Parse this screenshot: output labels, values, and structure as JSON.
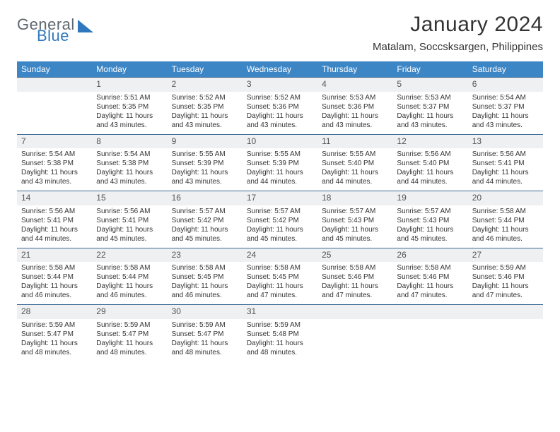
{
  "brand": {
    "part1": "General",
    "part2": "Blue"
  },
  "title": "January 2024",
  "location": "Matalam, Soccsksargen, Philippines",
  "colors": {
    "header_bg": "#3d86c6",
    "header_text": "#ffffff",
    "daynum_bg": "#eef0f1",
    "rule": "#3d6a97",
    "brand_blue": "#2f78bd",
    "brand_gray": "#5d6770"
  },
  "weekdays": [
    "Sunday",
    "Monday",
    "Tuesday",
    "Wednesday",
    "Thursday",
    "Friday",
    "Saturday"
  ],
  "weeks": [
    {
      "nums": [
        "",
        "1",
        "2",
        "3",
        "4",
        "5",
        "6"
      ],
      "cells": [
        {
          "sunrise": "",
          "sunset": "",
          "daylight": ""
        },
        {
          "sunrise": "Sunrise: 5:51 AM",
          "sunset": "Sunset: 5:35 PM",
          "daylight": "Daylight: 11 hours and 43 minutes."
        },
        {
          "sunrise": "Sunrise: 5:52 AM",
          "sunset": "Sunset: 5:35 PM",
          "daylight": "Daylight: 11 hours and 43 minutes."
        },
        {
          "sunrise": "Sunrise: 5:52 AM",
          "sunset": "Sunset: 5:36 PM",
          "daylight": "Daylight: 11 hours and 43 minutes."
        },
        {
          "sunrise": "Sunrise: 5:53 AM",
          "sunset": "Sunset: 5:36 PM",
          "daylight": "Daylight: 11 hours and 43 minutes."
        },
        {
          "sunrise": "Sunrise: 5:53 AM",
          "sunset": "Sunset: 5:37 PM",
          "daylight": "Daylight: 11 hours and 43 minutes."
        },
        {
          "sunrise": "Sunrise: 5:54 AM",
          "sunset": "Sunset: 5:37 PM",
          "daylight": "Daylight: 11 hours and 43 minutes."
        }
      ]
    },
    {
      "nums": [
        "7",
        "8",
        "9",
        "10",
        "11",
        "12",
        "13"
      ],
      "cells": [
        {
          "sunrise": "Sunrise: 5:54 AM",
          "sunset": "Sunset: 5:38 PM",
          "daylight": "Daylight: 11 hours and 43 minutes."
        },
        {
          "sunrise": "Sunrise: 5:54 AM",
          "sunset": "Sunset: 5:38 PM",
          "daylight": "Daylight: 11 hours and 43 minutes."
        },
        {
          "sunrise": "Sunrise: 5:55 AM",
          "sunset": "Sunset: 5:39 PM",
          "daylight": "Daylight: 11 hours and 43 minutes."
        },
        {
          "sunrise": "Sunrise: 5:55 AM",
          "sunset": "Sunset: 5:39 PM",
          "daylight": "Daylight: 11 hours and 44 minutes."
        },
        {
          "sunrise": "Sunrise: 5:55 AM",
          "sunset": "Sunset: 5:40 PM",
          "daylight": "Daylight: 11 hours and 44 minutes."
        },
        {
          "sunrise": "Sunrise: 5:56 AM",
          "sunset": "Sunset: 5:40 PM",
          "daylight": "Daylight: 11 hours and 44 minutes."
        },
        {
          "sunrise": "Sunrise: 5:56 AM",
          "sunset": "Sunset: 5:41 PM",
          "daylight": "Daylight: 11 hours and 44 minutes."
        }
      ]
    },
    {
      "nums": [
        "14",
        "15",
        "16",
        "17",
        "18",
        "19",
        "20"
      ],
      "cells": [
        {
          "sunrise": "Sunrise: 5:56 AM",
          "sunset": "Sunset: 5:41 PM",
          "daylight": "Daylight: 11 hours and 44 minutes."
        },
        {
          "sunrise": "Sunrise: 5:56 AM",
          "sunset": "Sunset: 5:41 PM",
          "daylight": "Daylight: 11 hours and 45 minutes."
        },
        {
          "sunrise": "Sunrise: 5:57 AM",
          "sunset": "Sunset: 5:42 PM",
          "daylight": "Daylight: 11 hours and 45 minutes."
        },
        {
          "sunrise": "Sunrise: 5:57 AM",
          "sunset": "Sunset: 5:42 PM",
          "daylight": "Daylight: 11 hours and 45 minutes."
        },
        {
          "sunrise": "Sunrise: 5:57 AM",
          "sunset": "Sunset: 5:43 PM",
          "daylight": "Daylight: 11 hours and 45 minutes."
        },
        {
          "sunrise": "Sunrise: 5:57 AM",
          "sunset": "Sunset: 5:43 PM",
          "daylight": "Daylight: 11 hours and 45 minutes."
        },
        {
          "sunrise": "Sunrise: 5:58 AM",
          "sunset": "Sunset: 5:44 PM",
          "daylight": "Daylight: 11 hours and 46 minutes."
        }
      ]
    },
    {
      "nums": [
        "21",
        "22",
        "23",
        "24",
        "25",
        "26",
        "27"
      ],
      "cells": [
        {
          "sunrise": "Sunrise: 5:58 AM",
          "sunset": "Sunset: 5:44 PM",
          "daylight": "Daylight: 11 hours and 46 minutes."
        },
        {
          "sunrise": "Sunrise: 5:58 AM",
          "sunset": "Sunset: 5:44 PM",
          "daylight": "Daylight: 11 hours and 46 minutes."
        },
        {
          "sunrise": "Sunrise: 5:58 AM",
          "sunset": "Sunset: 5:45 PM",
          "daylight": "Daylight: 11 hours and 46 minutes."
        },
        {
          "sunrise": "Sunrise: 5:58 AM",
          "sunset": "Sunset: 5:45 PM",
          "daylight": "Daylight: 11 hours and 47 minutes."
        },
        {
          "sunrise": "Sunrise: 5:58 AM",
          "sunset": "Sunset: 5:46 PM",
          "daylight": "Daylight: 11 hours and 47 minutes."
        },
        {
          "sunrise": "Sunrise: 5:58 AM",
          "sunset": "Sunset: 5:46 PM",
          "daylight": "Daylight: 11 hours and 47 minutes."
        },
        {
          "sunrise": "Sunrise: 5:59 AM",
          "sunset": "Sunset: 5:46 PM",
          "daylight": "Daylight: 11 hours and 47 minutes."
        }
      ]
    },
    {
      "nums": [
        "28",
        "29",
        "30",
        "31",
        "",
        "",
        ""
      ],
      "cells": [
        {
          "sunrise": "Sunrise: 5:59 AM",
          "sunset": "Sunset: 5:47 PM",
          "daylight": "Daylight: 11 hours and 48 minutes."
        },
        {
          "sunrise": "Sunrise: 5:59 AM",
          "sunset": "Sunset: 5:47 PM",
          "daylight": "Daylight: 11 hours and 48 minutes."
        },
        {
          "sunrise": "Sunrise: 5:59 AM",
          "sunset": "Sunset: 5:47 PM",
          "daylight": "Daylight: 11 hours and 48 minutes."
        },
        {
          "sunrise": "Sunrise: 5:59 AM",
          "sunset": "Sunset: 5:48 PM",
          "daylight": "Daylight: 11 hours and 48 minutes."
        },
        {
          "sunrise": "",
          "sunset": "",
          "daylight": ""
        },
        {
          "sunrise": "",
          "sunset": "",
          "daylight": ""
        },
        {
          "sunrise": "",
          "sunset": "",
          "daylight": ""
        }
      ]
    }
  ]
}
